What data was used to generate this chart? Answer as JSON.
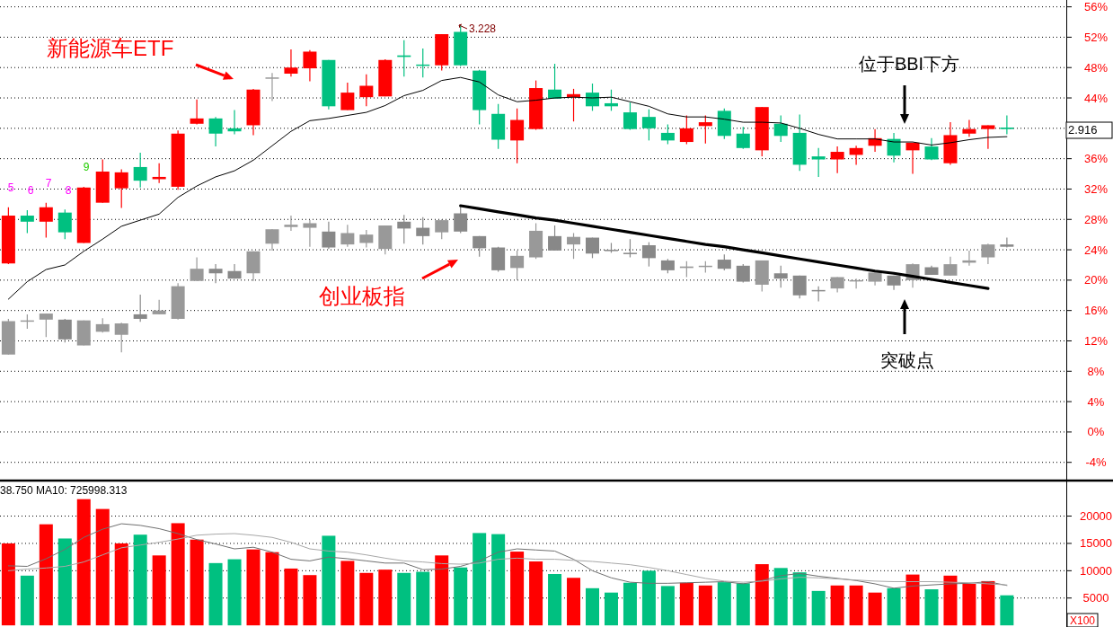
{
  "chart_data": [
    {
      "type": "candlestick",
      "categories": [
        null,
        null,
        null,
        null,
        null,
        null,
        null,
        null,
        null,
        null,
        null,
        null,
        null,
        null,
        null,
        null,
        null,
        null,
        null,
        null,
        null,
        null,
        null,
        null,
        null,
        null,
        null,
        null,
        null,
        null,
        null,
        null,
        null,
        null,
        null,
        null,
        null,
        null,
        null,
        null,
        null,
        null,
        null,
        null,
        null,
        null,
        null,
        null,
        null,
        null,
        null,
        null,
        null,
        null
      ],
      "series": [
        {
          "name": "新能源车ETF",
          "colors": [
            "#ff0000",
            "#00c080",
            "#ff0000",
            "#00c080",
            "#ff0000",
            "#ff0000",
            "#ff0000",
            "#00c080",
            "#ff0000",
            "#ff0000",
            "#ff0000",
            "#00c080",
            "#00c080",
            "#ff0000",
            "#999999",
            "#ff0000",
            "#ff0000",
            "#00c080",
            "#ff0000",
            "#ff0000",
            "#ff0000",
            "#00c080",
            "#00c080",
            "#ff0000",
            "#00c080",
            "#00c080",
            "#00c080",
            "#ff0000",
            "#ff0000",
            "#00c080",
            "#ff0000",
            "#00c080",
            "#00c080",
            "#00c080",
            "#00c080",
            "#00c080",
            "#ff0000",
            "#ff0000",
            "#00c080",
            "#00c080",
            "#ff0000",
            "#00c080",
            "#00c080",
            "#00c080",
            "#ff0000",
            "#ff0000",
            "#ff0000",
            "#00c080",
            "#ff0000",
            "#00c080",
            "#ff0000",
            "#ff0000",
            "#ff0000",
            "#00c080"
          ],
          "ohlc": [
            [
              22.2,
              29.6,
              22.1,
              28.5
            ],
            [
              28.5,
              29.2,
              26.2,
              27.7
            ],
            [
              27.7,
              30.2,
              25.6,
              29.6
            ],
            [
              28.9,
              29.3,
              25.4,
              26.3
            ],
            [
              24.9,
              32.3,
              24.9,
              32.2
            ],
            [
              30.2,
              35.9,
              30.2,
              34.3
            ],
            [
              32.1,
              34.6,
              29.5,
              34.2
            ],
            [
              34.9,
              36.8,
              32.2,
              33.1
            ],
            [
              33.3,
              35.4,
              32.8,
              33.6
            ],
            [
              32.3,
              39.7,
              31.9,
              39.3
            ],
            [
              40.6,
              43.8,
              40.5,
              41.3
            ],
            [
              41.3,
              41.5,
              37.6,
              39.3
            ],
            [
              40.0,
              42.4,
              39.2,
              39.6
            ],
            [
              40.4,
              45.2,
              39.1,
              45.1
            ],
            [
              46.7,
              47.3,
              43.6,
              46.7
            ],
            [
              47.2,
              50.4,
              46.8,
              48.0
            ],
            [
              47.9,
              50.3,
              46.2,
              50.1
            ],
            [
              49.0,
              49.0,
              42.5,
              42.9
            ],
            [
              42.4,
              46.0,
              42.4,
              44.7
            ],
            [
              44.1,
              47.1,
              42.9,
              45.6
            ],
            [
              44.2,
              49.1,
              44.2,
              49.0
            ],
            [
              49.6,
              51.6,
              46.8,
              49.4
            ],
            [
              48.4,
              50.5,
              46.7,
              48.3
            ],
            [
              48.3,
              52.4,
              47.6,
              52.4
            ],
            [
              52.7,
              53.6,
              48.2,
              48.3
            ],
            [
              47.6,
              47.7,
              40.5,
              42.4
            ],
            [
              41.9,
              43.2,
              37.3,
              38.5
            ],
            [
              38.4,
              42.6,
              35.4,
              41.1
            ],
            [
              39.9,
              46.3,
              39.8,
              45.3
            ],
            [
              45.1,
              48.5,
              43.9,
              43.9
            ],
            [
              44.1,
              45.2,
              40.9,
              44.5
            ],
            [
              44.7,
              45.9,
              42.3,
              42.9
            ],
            [
              43.3,
              45.1,
              42.3,
              42.9
            ],
            [
              42.1,
              43.4,
              39.8,
              39.9
            ],
            [
              41.5,
              42.5,
              38.4,
              40.0
            ],
            [
              39.4,
              40.5,
              37.9,
              38.4
            ],
            [
              38.2,
              41.7,
              37.9,
              40.0
            ],
            [
              40.3,
              41.7,
              38.0,
              40.8
            ],
            [
              42.3,
              42.6,
              38.6,
              39.0
            ],
            [
              39.3,
              40.2,
              37.3,
              37.4
            ],
            [
              37.1,
              42.8,
              36.3,
              42.8
            ],
            [
              40.6,
              41.7,
              38.2,
              39.0
            ],
            [
              39.4,
              41.8,
              34.4,
              35.2
            ],
            [
              36.3,
              37.4,
              33.6,
              35.9
            ],
            [
              35.9,
              37.6,
              34.1,
              36.9
            ],
            [
              36.5,
              37.7,
              35.2,
              37.4
            ],
            [
              37.7,
              39.9,
              36.9,
              38.7
            ],
            [
              38.6,
              39.4,
              35.5,
              36.4
            ],
            [
              37.1,
              38.1,
              34.0,
              38.1
            ],
            [
              37.6,
              38.7,
              35.8,
              35.9
            ],
            [
              35.4,
              40.8,
              35.2,
              39.1
            ],
            [
              39.3,
              41.1,
              38.9,
              39.9
            ],
            [
              39.9,
              40.4,
              37.3,
              40.4
            ],
            [
              40.1,
              41.7,
              39.2,
              39.9
            ]
          ]
        },
        {
          "type": "candlestick",
          "colors": [
            "#999999",
            "#999999",
            "#999999",
            "#888888",
            "#999999",
            "#999999",
            "#999999",
            "#888888",
            "#999999",
            "#999999",
            "#999999",
            "#888888",
            "#888888",
            "#999999",
            "#999999",
            "#999999",
            "#999999",
            "#888888",
            "#999999",
            "#999999",
            "#999999",
            "#888888",
            "#888888",
            "#999999",
            "#888888",
            "#888888",
            "#888888",
            "#999999",
            "#999999",
            "#888888",
            "#999999",
            "#888888",
            "#888888",
            "#888888",
            "#888888",
            "#888888",
            "#999999",
            "#999999",
            "#888888",
            "#888888",
            "#999999",
            "#888888",
            "#888888",
            "#888888",
            "#999999",
            "#999999",
            "#999999",
            "#888888",
            "#999999",
            "#888888",
            "#999999",
            "#999999",
            "#999999",
            "#888888"
          ],
          "ohlc": [
            [
              10.2,
              14.9,
              10.2,
              14.6
            ],
            [
              14.7,
              15.5,
              13.6,
              14.7
            ],
            [
              14.8,
              15.6,
              12.5,
              15.6
            ],
            [
              14.8,
              14.9,
              11.8,
              12.2
            ],
            [
              11.4,
              14.7,
              11.4,
              14.7
            ],
            [
              13.2,
              15.0,
              13.1,
              14.2
            ],
            [
              12.8,
              14.4,
              10.5,
              14.3
            ],
            [
              15.5,
              18.1,
              14.5,
              14.9
            ],
            [
              15.5,
              17.4,
              15.5,
              16.0
            ],
            [
              14.9,
              19.6,
              14.8,
              19.2
            ],
            [
              19.9,
              23.0,
              19.9,
              21.5
            ],
            [
              21.5,
              22.1,
              19.6,
              20.9
            ],
            [
              21.2,
              22.1,
              20.2,
              20.2
            ],
            [
              20.9,
              23.8,
              19.9,
              23.8
            ],
            [
              24.8,
              26.7,
              23.9,
              26.7
            ],
            [
              27.0,
              28.5,
              26.5,
              27.3
            ],
            [
              26.9,
              27.9,
              24.4,
              27.5
            ],
            [
              26.4,
              27.7,
              24.1,
              24.3
            ],
            [
              24.7,
              27.3,
              24.4,
              26.2
            ],
            [
              24.9,
              26.6,
              24.3,
              26.0
            ],
            [
              24.1,
              27.2,
              23.4,
              27.2
            ],
            [
              27.7,
              28.6,
              24.8,
              26.8
            ],
            [
              26.9,
              28.3,
              24.7,
              25.8
            ],
            [
              26.3,
              28.0,
              25.4,
              27.9
            ],
            [
              28.8,
              29.7,
              26.2,
              26.4
            ],
            [
              25.8,
              25.8,
              23.1,
              24.2
            ],
            [
              24.3,
              24.4,
              21.1,
              21.3
            ],
            [
              21.6,
              23.9,
              20.0,
              23.2
            ],
            [
              23.0,
              27.5,
              22.8,
              26.5
            ],
            [
              25.8,
              27.2,
              23.9,
              23.9
            ],
            [
              24.7,
              26.2,
              22.8,
              25.7
            ],
            [
              25.6,
              25.6,
              22.9,
              23.5
            ],
            [
              24.0,
              24.9,
              23.6,
              23.9
            ],
            [
              23.6,
              25.4,
              23.0,
              23.5
            ],
            [
              24.6,
              25.0,
              21.8,
              22.9
            ],
            [
              22.6,
              22.8,
              20.9,
              21.3
            ],
            [
              21.6,
              22.5,
              20.4,
              21.8
            ],
            [
              21.8,
              22.5,
              21.0,
              21.9
            ],
            [
              22.7,
              23.4,
              21.3,
              21.5
            ],
            [
              21.9,
              22.1,
              19.7,
              19.8
            ],
            [
              19.4,
              22.6,
              18.5,
              22.6
            ],
            [
              20.9,
              21.9,
              19.0,
              20.2
            ],
            [
              20.6,
              20.6,
              17.6,
              18.0
            ],
            [
              18.7,
              19.2,
              17.2,
              18.6
            ],
            [
              18.9,
              20.4,
              18.4,
              20.4
            ],
            [
              19.9,
              20.2,
              18.9,
              20.0
            ],
            [
              19.8,
              21.0,
              19.3,
              21.0
            ],
            [
              20.6,
              20.6,
              18.7,
              19.3
            ],
            [
              20.0,
              22.2,
              19.0,
              22.1
            ],
            [
              21.7,
              21.9,
              20.7,
              20.7
            ],
            [
              20.6,
              23.1,
              20.6,
              22.1
            ],
            [
              22.3,
              23.9,
              21.9,
              22.6
            ],
            [
              23.0,
              24.8,
              22.1,
              24.7
            ],
            [
              24.7,
              25.6,
              24.3,
              24.4
            ]
          ]
        },
        {
          "type": "line",
          "color": "#000000",
          "values": [
            17.5,
            19.8,
            21.4,
            22.0,
            23.8,
            25.4,
            27.1,
            27.9,
            28.7,
            30.9,
            32.4,
            33.6,
            34.4,
            35.8,
            37.7,
            39.6,
            41.0,
            41.3,
            41.7,
            42.1,
            43.0,
            44.3,
            45.0,
            46.3,
            46.7,
            46.1,
            44.4,
            43.5,
            43.7,
            44.0,
            44.1,
            44.0,
            44.1,
            43.5,
            42.9,
            41.9,
            41.5,
            41.5,
            41.2,
            40.8,
            40.8,
            40.7,
            40.0,
            39.2,
            38.6,
            38.6,
            38.6,
            38.2,
            38.2,
            37.8,
            38.1,
            38.5,
            38.8,
            38.9
          ]
        },
        {
          "type": "line",
          "color": "#000000",
          "values": [
            null,
            null,
            null,
            null,
            null,
            null,
            null,
            null,
            null,
            null,
            null,
            null,
            null,
            null,
            null,
            null,
            null,
            null,
            null,
            null,
            null,
            null,
            null,
            null,
            29.8,
            29.4,
            29.0,
            28.6,
            28.2,
            27.9,
            27.5,
            27.1,
            26.7,
            26.3,
            25.9,
            25.5,
            25.1,
            24.7,
            24.4,
            24.0,
            23.6,
            23.2,
            22.8,
            22.4,
            22.0,
            21.6,
            21.2,
            20.9,
            20.5,
            20.1,
            19.7,
            19.3,
            18.9,
            null
          ]
        }
      ],
      "ylim": [
        -6.4,
        56.9
      ],
      "yticks": [
        {
          "value": -4,
          "label": "-4%"
        },
        {
          "value": 0,
          "label": "0%"
        },
        {
          "value": 4,
          "label": "4%"
        },
        {
          "value": 8,
          "label": "8%"
        },
        {
          "value": 12,
          "label": "12%"
        },
        {
          "value": 16,
          "label": "16%"
        },
        {
          "value": 20,
          "label": "20%"
        },
        {
          "value": 24,
          "label": "24%"
        },
        {
          "value": 28,
          "label": "28%"
        },
        {
          "value": 32,
          "label": "32%"
        },
        {
          "value": 36,
          "label": "36%"
        },
        {
          "value": 40,
          "label": null
        },
        {
          "value": 44,
          "label": "44%"
        },
        {
          "value": 48,
          "label": "48%"
        },
        {
          "value": 52,
          "label": "52%"
        },
        {
          "value": 56,
          "label": "56%"
        }
      ],
      "grid": "y",
      "tick_labels": "y",
      "annotations": [
        "位于BBI下方",
        "突破点",
        "5",
        "6",
        "7",
        "8",
        "9",
        "3.228",
        "2.916",
        "创业板指"
      ]
    },
    {
      "type": "bar",
      "categories": [
        null,
        null,
        null,
        null,
        null,
        null,
        null,
        null,
        null,
        null,
        null,
        null,
        null,
        null,
        null,
        null,
        null,
        null,
        null,
        null,
        null,
        null,
        null,
        null,
        null,
        null,
        null,
        null,
        null,
        null,
        null,
        null,
        null,
        null,
        null,
        null,
        null,
        null,
        null,
        null,
        null,
        null,
        null,
        null,
        null,
        null,
        null,
        null,
        null,
        null,
        null,
        null,
        null,
        null
      ],
      "series": [
        {
          "colors": [
            "#ff0000",
            "#00c080",
            "#ff0000",
            "#00c080",
            "#ff0000",
            "#ff0000",
            "#ff0000",
            "#00c080",
            "#ff0000",
            "#ff0000",
            "#ff0000",
            "#00c080",
            "#00c080",
            "#ff0000",
            "#ff0000",
            "#ff0000",
            "#ff0000",
            "#00c080",
            "#ff0000",
            "#ff0000",
            "#ff0000",
            "#00c080",
            "#00c080",
            "#ff0000",
            "#00c080",
            "#00c080",
            "#00c080",
            "#ff0000",
            "#ff0000",
            "#00c080",
            "#ff0000",
            "#00c080",
            "#00c080",
            "#00c080",
            "#00c080",
            "#00c080",
            "#ff0000",
            "#ff0000",
            "#00c080",
            "#00c080",
            "#ff0000",
            "#00c080",
            "#00c080",
            "#00c080",
            "#ff0000",
            "#ff0000",
            "#ff0000",
            "#00c080",
            "#ff0000",
            "#00c080",
            "#ff0000",
            "#ff0000",
            "#ff0000",
            "#00c080"
          ],
          "values": [
            15000,
            9100,
            18500,
            15900,
            23100,
            21300,
            15000,
            16600,
            12800,
            18700,
            15700,
            11400,
            12100,
            13900,
            13400,
            10400,
            9200,
            16400,
            11800,
            9600,
            10200,
            9600,
            9800,
            12800,
            10600,
            16900,
            16700,
            13500,
            11700,
            9400,
            8700,
            6800,
            6000,
            7800,
            10000,
            7200,
            7800,
            7300,
            7900,
            7700,
            11200,
            10500,
            9700,
            6300,
            7300,
            7300,
            6000,
            6800,
            9300,
            6600,
            9100,
            7600,
            8100,
            5500
          ]
        },
        {
          "type": "line",
          "color": "#707070",
          "values": [
            10900,
            10800,
            12200,
            13900,
            16100,
            17600,
            18600,
            18300,
            17700,
            16800,
            15700,
            14900,
            14000,
            14300,
            13400,
            12100,
            11800,
            12500,
            12200,
            11800,
            11400,
            11400,
            10200,
            10300,
            10800,
            11800,
            13400,
            14000,
            13800,
            13600,
            12100,
            10000,
            8700,
            7900,
            7700,
            7700,
            7800,
            7900,
            8000,
            7600,
            8200,
            9100,
            9500,
            9000,
            8600,
            8200,
            7600,
            6800,
            7200,
            7400,
            7600,
            7700,
            8000,
            7300
          ]
        },
        {
          "type": "line",
          "color": "#a8a8a8",
          "values": [
            10000,
            10300,
            10500,
            10800,
            11600,
            12900,
            14200,
            14700,
            15200,
            15800,
            16500,
            16700,
            16800,
            16500,
            16100,
            15200,
            14000,
            13600,
            13400,
            12900,
            12300,
            11800,
            11600,
            11300,
            11200,
            11400,
            12100,
            12300,
            12100,
            12100,
            11900,
            11700,
            11400,
            11100,
            10600,
            10000,
            9300,
            8600,
            8100,
            7900,
            8100,
            8500,
            8800,
            8700,
            8500,
            8300,
            8100,
            8000,
            8000,
            8000,
            7900,
            7800,
            7600,
            7400
          ]
        }
      ],
      "ylim": [
        -300,
        26500
      ],
      "yticks": [
        5000,
        10000,
        15000,
        20000
      ],
      "grid": "y",
      "tick_labels": "y",
      "annotations": [
        "38.750  MA10: 725998.313",
        "X100"
      ]
    }
  ]
}
